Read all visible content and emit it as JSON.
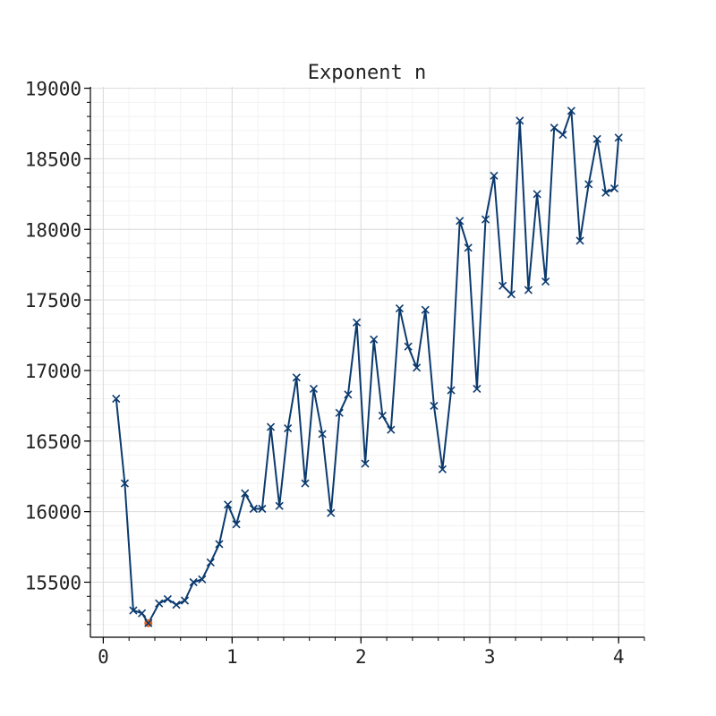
{
  "chart_data": {
    "type": "line",
    "title": "Exponent n",
    "xlabel": "",
    "ylabel": "",
    "xlim": [
      -0.1,
      4.2
    ],
    "ylim": [
      15110,
      19010
    ],
    "xticks": [
      0,
      1,
      2,
      3,
      4
    ],
    "yticks": [
      15500,
      16000,
      16500,
      17000,
      17500,
      18000,
      18500,
      19000
    ],
    "grid": true,
    "line_color": "#0b3a6e",
    "highlight_color": "#e8601c",
    "highlight_index": 4,
    "series": [
      {
        "marker": "x",
        "x": [
          0.1,
          0.167,
          0.233,
          0.3,
          0.35,
          0.433,
          0.5,
          0.567,
          0.633,
          0.7,
          0.767,
          0.833,
          0.9,
          0.967,
          1.033,
          1.1,
          1.167,
          1.233,
          1.3,
          1.367,
          1.433,
          1.5,
          1.567,
          1.633,
          1.7,
          1.767,
          1.833,
          1.9,
          1.967,
          2.033,
          2.1,
          2.167,
          2.233,
          2.3,
          2.367,
          2.433,
          2.5,
          2.567,
          2.633,
          2.7,
          2.767,
          2.833,
          2.9,
          2.967,
          3.033,
          3.1,
          3.167,
          3.233,
          3.3,
          3.367,
          3.433,
          3.5,
          3.567,
          3.633,
          3.7,
          3.767,
          3.833,
          3.9,
          3.967,
          4.0
        ],
        "y": [
          16800,
          16200,
          15300,
          15280,
          15210,
          15350,
          15380,
          15340,
          15370,
          15500,
          15520,
          15640,
          15770,
          16050,
          15910,
          16130,
          16020,
          16020,
          16600,
          16040,
          16590,
          16950,
          16200,
          16870,
          16550,
          15990,
          16700,
          16830,
          17340,
          16340,
          17220,
          16680,
          16580,
          17440,
          17170,
          17020,
          17430,
          16750,
          16300,
          16860,
          18060,
          17870,
          16870,
          18070,
          18380,
          17600,
          17540,
          18770,
          17570,
          18250,
          17630,
          18720,
          18670,
          18840,
          17920,
          18320,
          18640,
          18260,
          18290,
          18650
        ]
      }
    ]
  }
}
